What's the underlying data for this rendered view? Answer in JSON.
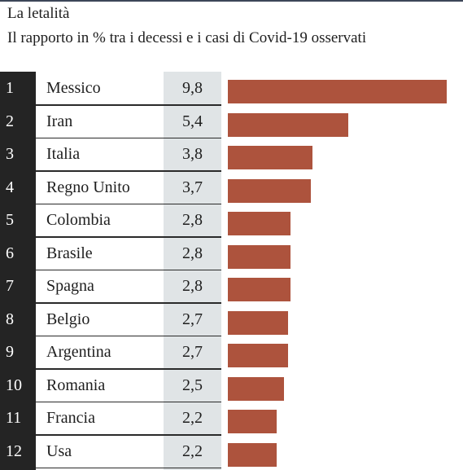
{
  "colors": {
    "bar": "#ad533d",
    "rank_column": "#242424",
    "value_column": "#e0e4e6",
    "text": "#1e1e1e"
  },
  "chart_data": {
    "type": "bar",
    "orientation": "horizontal",
    "title": "La letalità",
    "subtitle": "Il rapporto in % tra i decessi e i casi di Covid-19 osservati",
    "xlim": [
      0,
      9.8
    ],
    "rows": [
      {
        "rank": "1",
        "country": "Messico",
        "value_label": "9,8"
      },
      {
        "rank": "2",
        "country": "Iran",
        "value_label": "5,4"
      },
      {
        "rank": "3",
        "country": "Italia",
        "value_label": "3,8"
      },
      {
        "rank": "4",
        "country": "Regno Unito",
        "value_label": "3,7"
      },
      {
        "rank": "5",
        "country": "Colombia",
        "value_label": "2,8"
      },
      {
        "rank": "6",
        "country": "Brasile",
        "value_label": "2,8"
      },
      {
        "rank": "7",
        "country": "Spagna",
        "value_label": "2,8"
      },
      {
        "rank": "8",
        "country": "Belgio",
        "value_label": "2,7"
      },
      {
        "rank": "9",
        "country": "Argentina",
        "value_label": "2,7"
      },
      {
        "rank": "10",
        "country": "Romania",
        "value_label": "2,5"
      },
      {
        "rank": "11",
        "country": "Francia",
        "value_label": "2,2"
      },
      {
        "rank": "12",
        "country": "Usa",
        "value_label": "2,2"
      }
    ],
    "categories": [
      "Messico",
      "Iran",
      "Italia",
      "Regno Unito",
      "Colombia",
      "Brasile",
      "Spagna",
      "Belgio",
      "Argentina",
      "Romania",
      "Francia",
      "Usa"
    ],
    "values": [
      9.8,
      5.4,
      3.8,
      3.7,
      2.8,
      2.8,
      2.8,
      2.7,
      2.7,
      2.5,
      2.2,
      2.2
    ]
  }
}
